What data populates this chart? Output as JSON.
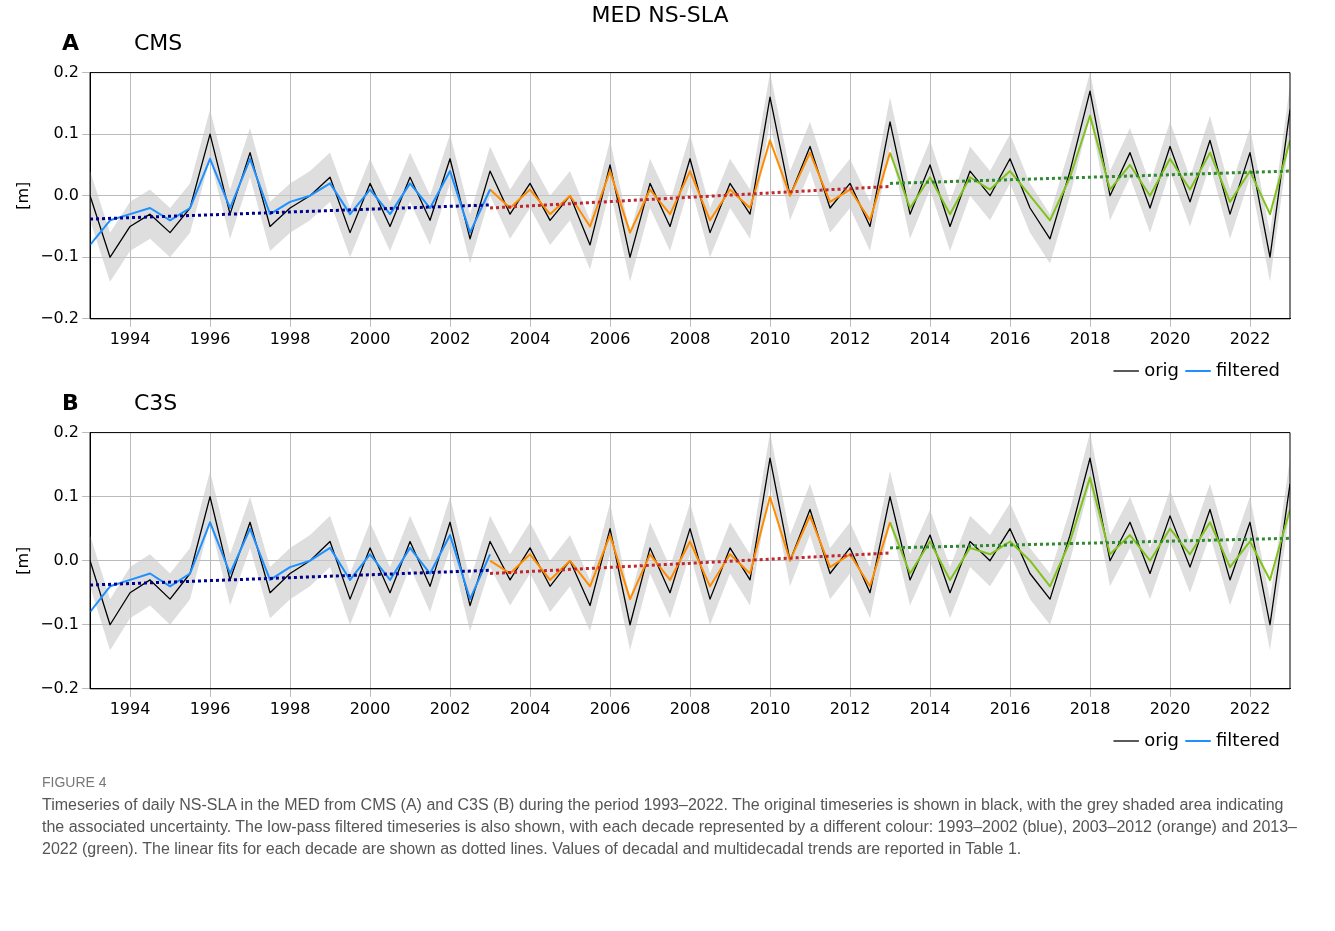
{
  "chart_data": [
    {
      "type": "line",
      "title": "CMS",
      "ylabel": "[m]",
      "annotations": [
        "MED NS-SLA",
        "A"
      ],
      "xlim": [
        1993,
        2023
      ],
      "xticks": [
        1994,
        1996,
        1998,
        2000,
        2002,
        2004,
        2006,
        2008,
        2010,
        2012,
        2014,
        2016,
        2018,
        2020,
        2022
      ],
      "ylim": [
        -0.2,
        0.2
      ],
      "yticks": [
        {
          "value": -0.2,
          "label": "−0.2"
        },
        {
          "value": -0.1,
          "label": "−0.1"
        },
        {
          "value": 0,
          "label": "0.0"
        },
        {
          "value": 0.1,
          "label": "0.1"
        },
        {
          "value": 0.2,
          "label": "0.2"
        }
      ],
      "grid": true,
      "legend": "bottom right",
      "marker": "none",
      "series": [
        {
          "name": "orig",
          "color": "#000000",
          "x": [
            1993,
            1993.5,
            1994,
            1994.5,
            1995,
            1995.5,
            1996,
            1996.5,
            1997,
            1997.5,
            1998,
            1998.5,
            1999,
            1999.5,
            2000,
            2000.5,
            2001,
            2001.5,
            2002,
            2002.5,
            2003,
            2003.5,
            2004,
            2004.5,
            2005,
            2005.5,
            2006,
            2006.5,
            2007,
            2007.5,
            2008,
            2008.5,
            2009,
            2009.5,
            2010,
            2010.5,
            2011,
            2011.5,
            2012,
            2012.5,
            2013,
            2013.5,
            2014,
            2014.5,
            2015,
            2015.5,
            2016,
            2016.5,
            2017,
            2017.5,
            2018,
            2018.5,
            2019,
            2019.5,
            2020,
            2020.5,
            2021,
            2021.5,
            2022,
            2022.5,
            2023
          ],
          "values": [
            0.0,
            -0.1,
            -0.05,
            -0.03,
            -0.06,
            -0.02,
            0.1,
            -0.03,
            0.07,
            -0.05,
            -0.02,
            0.0,
            0.03,
            -0.06,
            0.02,
            -0.05,
            0.03,
            -0.04,
            0.06,
            -0.07,
            0.04,
            -0.03,
            0.02,
            -0.04,
            0.0,
            -0.08,
            0.05,
            -0.1,
            0.02,
            -0.05,
            0.06,
            -0.06,
            0.02,
            -0.03,
            0.16,
            0.0,
            0.08,
            -0.02,
            0.02,
            -0.05,
            0.12,
            -0.03,
            0.05,
            -0.05,
            0.04,
            0.0,
            0.06,
            -0.02,
            -0.07,
            0.04,
            0.17,
            0.0,
            0.07,
            -0.02,
            0.08,
            -0.01,
            0.09,
            -0.03,
            0.07,
            -0.1,
            0.14
          ],
          "lower": [
            -0.04,
            -0.14,
            -0.09,
            -0.07,
            -0.1,
            -0.06,
            0.06,
            -0.07,
            0.03,
            -0.09,
            -0.06,
            -0.04,
            -0.01,
            -0.1,
            -0.02,
            -0.09,
            -0.01,
            -0.08,
            0.02,
            -0.11,
            0.0,
            -0.07,
            -0.02,
            -0.08,
            -0.04,
            -0.12,
            0.01,
            -0.14,
            -0.02,
            -0.09,
            0.02,
            -0.1,
            -0.02,
            -0.07,
            0.12,
            -0.04,
            0.04,
            -0.06,
            -0.02,
            -0.09,
            0.08,
            -0.07,
            0.01,
            -0.09,
            0.0,
            -0.04,
            0.02,
            -0.06,
            -0.11,
            0.0,
            0.13,
            -0.04,
            0.03,
            -0.06,
            0.04,
            -0.05,
            0.05,
            -0.07,
            0.03,
            -0.14,
            0.1
          ],
          "upper": [
            0.04,
            -0.06,
            -0.01,
            0.01,
            -0.02,
            0.02,
            0.14,
            0.01,
            0.11,
            -0.01,
            0.02,
            0.04,
            0.07,
            -0.02,
            0.06,
            -0.01,
            0.07,
            0.0,
            0.1,
            -0.03,
            0.08,
            0.01,
            0.06,
            0.0,
            0.04,
            -0.04,
            0.09,
            -0.06,
            0.06,
            -0.01,
            0.1,
            -0.02,
            0.06,
            0.01,
            0.2,
            0.04,
            0.12,
            0.02,
            0.06,
            -0.01,
            0.16,
            0.01,
            0.09,
            -0.01,
            0.08,
            0.04,
            0.1,
            0.02,
            -0.03,
            0.08,
            0.2,
            0.04,
            0.11,
            0.02,
            0.12,
            0.03,
            0.13,
            0.01,
            0.11,
            -0.06,
            0.18
          ]
        },
        {
          "name": "filtered",
          "color": "#1e90ff",
          "x": [
            1993,
            1993.5,
            1994,
            1994.5,
            1995,
            1995.5,
            1996,
            1996.5,
            1997,
            1997.5,
            1998,
            1998.5,
            1999,
            1999.5,
            2000,
            2000.5,
            2001,
            2001.5,
            2002,
            2002.5,
            2003
          ],
          "values": [
            -0.08,
            -0.04,
            -0.03,
            -0.02,
            -0.04,
            -0.02,
            0.06,
            -0.02,
            0.06,
            -0.03,
            -0.01,
            0.0,
            0.02,
            -0.03,
            0.01,
            -0.03,
            0.02,
            -0.02,
            0.04,
            -0.06,
            0.01
          ]
        },
        {
          "color": "#ff8c00",
          "x": [
            2003,
            2003.5,
            2004,
            2004.5,
            2005,
            2005.5,
            2006,
            2006.5,
            2007,
            2007.5,
            2008,
            2008.5,
            2009,
            2009.5,
            2010,
            2010.5,
            2011,
            2011.5,
            2012,
            2012.5,
            2013
          ],
          "values": [
            0.01,
            -0.02,
            0.01,
            -0.03,
            0.0,
            -0.05,
            0.04,
            -0.06,
            0.01,
            -0.03,
            0.04,
            -0.04,
            0.01,
            -0.02,
            0.09,
            0.0,
            0.07,
            -0.01,
            0.01,
            -0.04,
            0.07
          ]
        },
        {
          "color": "#7fc31c",
          "x": [
            2013,
            2013.5,
            2014,
            2014.5,
            2015,
            2015.5,
            2016,
            2016.5,
            2017,
            2017.5,
            2018,
            2018.5,
            2019,
            2019.5,
            2020,
            2020.5,
            2021,
            2021.5,
            2022,
            2022.5,
            2023
          ],
          "values": [
            0.07,
            -0.02,
            0.03,
            -0.03,
            0.03,
            0.01,
            0.04,
            0.0,
            -0.04,
            0.03,
            0.13,
            0.01,
            0.05,
            0.0,
            0.06,
            0.01,
            0.07,
            -0.01,
            0.04,
            -0.03,
            0.09
          ]
        },
        {
          "color": "#00008b",
          "line_style": "dotted",
          "x": [
            1993,
            2003
          ],
          "values": [
            -0.038,
            -0.015
          ]
        },
        {
          "color": "#c0282d",
          "line_style": "dotted",
          "x": [
            2003,
            2013
          ],
          "values": [
            -0.02,
            0.015
          ]
        },
        {
          "color": "#2e8b2e",
          "line_style": "dotted",
          "x": [
            2013,
            2023
          ],
          "values": [
            0.02,
            0.04
          ]
        }
      ]
    },
    {
      "type": "line",
      "title": "C3S",
      "ylabel": "[m]",
      "annotations": [
        "B",
        "FIGURE 4",
        "Timeseries of daily NS-SLA in the MED from CMS (A) and C3S (B) during the period 1993–2022. The original timeseries is shown in black, with the grey shaded area indicating the associated uncertainty. The low-pass filtered timeseries is also shown, with each decade represented by a different colour: 1993–2002 (blue), 2003–2012 (orange) and 2013–2022 (green). The linear fits for each decade are shown as dotted lines. Values of decadal and multidecadal trends are reported in Table 1."
      ],
      "xlim": [
        1993,
        2023
      ],
      "xticks": [
        1994,
        1996,
        1998,
        2000,
        2002,
        2004,
        2006,
        2008,
        2010,
        2012,
        2014,
        2016,
        2018,
        2020,
        2022
      ],
      "ylim": [
        -0.2,
        0.2
      ],
      "yticks": [
        {
          "value": -0.2,
          "label": "−0.2"
        },
        {
          "value": -0.1,
          "label": "−0.1"
        },
        {
          "value": 0,
          "label": "0.0"
        },
        {
          "value": 0.1,
          "label": "0.1"
        },
        {
          "value": 0.2,
          "label": "0.2"
        }
      ],
      "grid": true,
      "legend": "bottom right",
      "marker": "none",
      "series": [
        {
          "name": "orig",
          "color": "#000000",
          "x": [
            1993,
            1993.5,
            1994,
            1994.5,
            1995,
            1995.5,
            1996,
            1996.5,
            1997,
            1997.5,
            1998,
            1998.5,
            1999,
            1999.5,
            2000,
            2000.5,
            2001,
            2001.5,
            2002,
            2002.5,
            2003,
            2003.5,
            2004,
            2004.5,
            2005,
            2005.5,
            2006,
            2006.5,
            2007,
            2007.5,
            2008,
            2008.5,
            2009,
            2009.5,
            2010,
            2010.5,
            2011,
            2011.5,
            2012,
            2012.5,
            2013,
            2013.5,
            2014,
            2014.5,
            2015,
            2015.5,
            2016,
            2016.5,
            2017,
            2017.5,
            2018,
            2018.5,
            2019,
            2019.5,
            2020,
            2020.5,
            2021,
            2021.5,
            2022,
            2022.5,
            2023
          ],
          "values": [
            0.0,
            -0.1,
            -0.05,
            -0.03,
            -0.06,
            -0.02,
            0.1,
            -0.03,
            0.06,
            -0.05,
            -0.02,
            0.0,
            0.03,
            -0.06,
            0.02,
            -0.05,
            0.03,
            -0.04,
            0.06,
            -0.07,
            0.03,
            -0.03,
            0.02,
            -0.04,
            0.0,
            -0.07,
            0.05,
            -0.1,
            0.02,
            -0.05,
            0.05,
            -0.06,
            0.02,
            -0.03,
            0.16,
            0.0,
            0.08,
            -0.02,
            0.02,
            -0.05,
            0.1,
            -0.03,
            0.04,
            -0.05,
            0.03,
            0.0,
            0.05,
            -0.02,
            -0.06,
            0.04,
            0.16,
            0.0,
            0.06,
            -0.02,
            0.07,
            -0.01,
            0.08,
            -0.03,
            0.06,
            -0.1,
            0.12
          ],
          "lower": [
            -0.04,
            -0.14,
            -0.09,
            -0.07,
            -0.1,
            -0.06,
            0.06,
            -0.07,
            0.02,
            -0.09,
            -0.06,
            -0.04,
            -0.01,
            -0.1,
            -0.02,
            -0.09,
            -0.01,
            -0.08,
            0.02,
            -0.11,
            -0.01,
            -0.07,
            -0.02,
            -0.08,
            -0.04,
            -0.11,
            0.01,
            -0.14,
            -0.02,
            -0.09,
            0.01,
            -0.1,
            -0.02,
            -0.07,
            0.12,
            -0.04,
            0.04,
            -0.06,
            -0.02,
            -0.09,
            0.06,
            -0.07,
            0.0,
            -0.09,
            -0.01,
            -0.04,
            0.01,
            -0.06,
            -0.1,
            0.0,
            0.12,
            -0.04,
            0.02,
            -0.06,
            0.03,
            -0.05,
            0.04,
            -0.07,
            0.02,
            -0.14,
            0.08
          ],
          "upper": [
            0.04,
            -0.06,
            -0.01,
            0.01,
            -0.02,
            0.02,
            0.14,
            0.01,
            0.1,
            -0.01,
            0.02,
            0.04,
            0.07,
            -0.02,
            0.06,
            -0.01,
            0.07,
            0.0,
            0.1,
            -0.03,
            0.07,
            0.01,
            0.06,
            0.0,
            0.04,
            -0.03,
            0.09,
            -0.06,
            0.06,
            -0.01,
            0.09,
            -0.02,
            0.06,
            0.01,
            0.2,
            0.04,
            0.12,
            0.02,
            0.06,
            -0.01,
            0.14,
            0.01,
            0.08,
            -0.01,
            0.07,
            0.04,
            0.09,
            0.02,
            -0.02,
            0.08,
            0.2,
            0.04,
            0.1,
            0.02,
            0.11,
            0.03,
            0.12,
            0.01,
            0.1,
            -0.06,
            0.16
          ]
        },
        {
          "name": "filtered",
          "color": "#1e90ff",
          "x": [
            1993,
            1993.5,
            1994,
            1994.5,
            1995,
            1995.5,
            1996,
            1996.5,
            1997,
            1997.5,
            1998,
            1998.5,
            1999,
            1999.5,
            2000,
            2000.5,
            2001,
            2001.5,
            2002,
            2002.5,
            2003
          ],
          "values": [
            -0.08,
            -0.04,
            -0.03,
            -0.02,
            -0.04,
            -0.02,
            0.06,
            -0.02,
            0.05,
            -0.03,
            -0.01,
            0.0,
            0.02,
            -0.03,
            0.01,
            -0.03,
            0.02,
            -0.02,
            0.04,
            -0.06,
            0.01
          ]
        },
        {
          "color": "#ff8c00",
          "x": [
            2003,
            2003.5,
            2004,
            2004.5,
            2005,
            2005.5,
            2006,
            2006.5,
            2007,
            2007.5,
            2008,
            2008.5,
            2009,
            2009.5,
            2010,
            2010.5,
            2011,
            2011.5,
            2012,
            2012.5,
            2013
          ],
          "values": [
            0.0,
            -0.02,
            0.01,
            -0.03,
            0.0,
            -0.04,
            0.04,
            -0.06,
            0.01,
            -0.03,
            0.03,
            -0.04,
            0.01,
            -0.02,
            0.1,
            0.0,
            0.07,
            -0.01,
            0.01,
            -0.04,
            0.06
          ]
        },
        {
          "color": "#7fc31c",
          "x": [
            2013,
            2013.5,
            2014,
            2014.5,
            2015,
            2015.5,
            2016,
            2016.5,
            2017,
            2017.5,
            2018,
            2018.5,
            2019,
            2019.5,
            2020,
            2020.5,
            2021,
            2021.5,
            2022,
            2022.5,
            2023
          ],
          "values": [
            0.06,
            -0.02,
            0.03,
            -0.03,
            0.02,
            0.01,
            0.03,
            0.0,
            -0.04,
            0.03,
            0.13,
            0.01,
            0.04,
            0.0,
            0.05,
            0.01,
            0.06,
            -0.01,
            0.03,
            -0.03,
            0.08
          ]
        },
        {
          "color": "#00008b",
          "line_style": "dotted",
          "x": [
            1993,
            2003
          ],
          "values": [
            -0.038,
            -0.015
          ]
        },
        {
          "color": "#c0282d",
          "line_style": "dotted",
          "x": [
            2003,
            2013
          ],
          "values": [
            -0.02,
            0.012
          ]
        },
        {
          "color": "#2e8b2e",
          "line_style": "dotted",
          "x": [
            2013,
            2023
          ],
          "values": [
            0.02,
            0.035
          ]
        }
      ]
    }
  ]
}
